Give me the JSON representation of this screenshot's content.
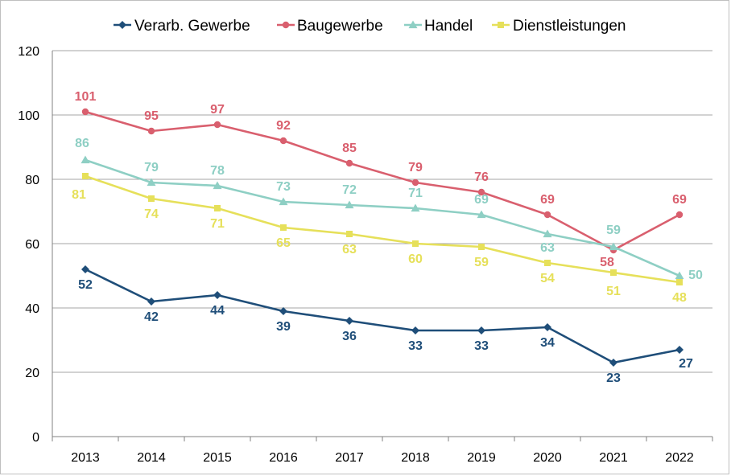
{
  "chart_data": {
    "type": "line",
    "title": "",
    "xlabel": "",
    "ylabel": "",
    "categories": [
      "2013",
      "2014",
      "2015",
      "2016",
      "2017",
      "2018",
      "2019",
      "2020",
      "2021",
      "2022"
    ],
    "ylim": [
      0,
      120
    ],
    "yticks": [
      0,
      20,
      40,
      60,
      80,
      100,
      120
    ],
    "grid": "horizontal",
    "legend_position": "top",
    "series": [
      {
        "name": "Verarb. Gewerbe",
        "color": "#1f4e79",
        "marker": "diamond",
        "values": [
          52,
          42,
          44,
          39,
          36,
          33,
          33,
          34,
          23,
          27
        ]
      },
      {
        "name": "Baugewerbe",
        "color": "#d95f6e",
        "marker": "circle",
        "values": [
          101,
          95,
          97,
          92,
          85,
          79,
          76,
          69,
          58,
          69
        ]
      },
      {
        "name": "Handel",
        "color": "#8ecfc4",
        "marker": "triangle",
        "values": [
          86,
          79,
          78,
          73,
          72,
          71,
          69,
          63,
          59,
          50
        ]
      },
      {
        "name": "Dienstleistungen",
        "color": "#e6e05a",
        "marker": "square",
        "values": [
          81,
          74,
          71,
          65,
          63,
          60,
          59,
          54,
          51,
          48
        ]
      }
    ]
  }
}
